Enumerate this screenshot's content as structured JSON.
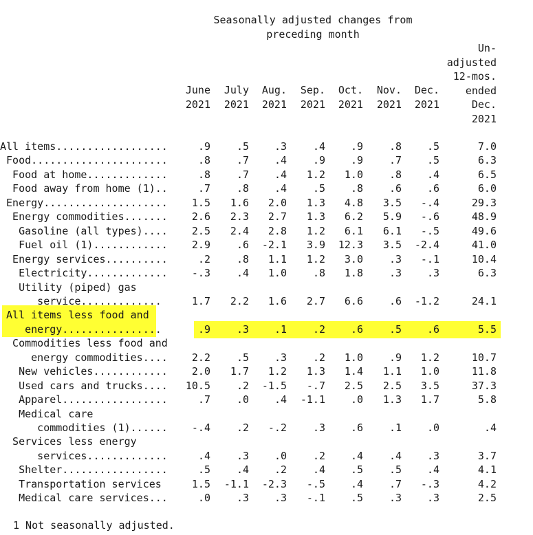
{
  "caption": {
    "line1": "Seasonally adjusted changes from",
    "line2": "preceding month"
  },
  "columns": [
    {
      "line1": "June",
      "line2": "2021"
    },
    {
      "line1": "July",
      "line2": "2021"
    },
    {
      "line1": "Aug.",
      "line2": "2021"
    },
    {
      "line1": "Sep.",
      "line2": "2021"
    },
    {
      "line1": "Oct.",
      "line2": "2021"
    },
    {
      "line1": "Nov.",
      "line2": "2021"
    },
    {
      "line1": "Dec.",
      "line2": "2021"
    }
  ],
  "last_column": {
    "lines": [
      "Un-",
      "adjusted",
      "12-mos.",
      "ended",
      "Dec.",
      "2021"
    ]
  },
  "rows": [
    {
      "label": "All items..................",
      "values": [
        ".9",
        ".5",
        ".3",
        ".4",
        ".9",
        ".8",
        ".5",
        "7.0"
      ]
    },
    {
      "label": " Food......................",
      "values": [
        ".8",
        ".7",
        ".4",
        ".9",
        ".9",
        ".7",
        ".5",
        "6.3"
      ]
    },
    {
      "label": "  Food at home.............",
      "values": [
        ".8",
        ".7",
        ".4",
        "1.2",
        "1.0",
        ".8",
        ".4",
        "6.5"
      ]
    },
    {
      "label": "  Food away from home (1)..",
      "values": [
        ".7",
        ".8",
        ".4",
        ".5",
        ".8",
        ".6",
        ".6",
        "6.0"
      ]
    },
    {
      "label": " Energy....................",
      "values": [
        "1.5",
        "1.6",
        "2.0",
        "1.3",
        "4.8",
        "3.5",
        "-.4",
        "29.3"
      ]
    },
    {
      "label": "  Energy commodities.......",
      "values": [
        "2.6",
        "2.3",
        "2.7",
        "1.3",
        "6.2",
        "5.9",
        "-.6",
        "48.9"
      ]
    },
    {
      "label": "   Gasoline (all types)....",
      "values": [
        "2.5",
        "2.4",
        "2.8",
        "1.2",
        "6.1",
        "6.1",
        "-.5",
        "49.6"
      ]
    },
    {
      "label": "   Fuel oil (1)............",
      "values": [
        "2.9",
        ".6",
        "-2.1",
        "3.9",
        "12.3",
        "3.5",
        "-2.4",
        "41.0"
      ]
    },
    {
      "label": "  Energy services..........",
      "values": [
        ".2",
        ".8",
        "1.1",
        "1.2",
        "3.0",
        ".3",
        "-.1",
        "10.4"
      ]
    },
    {
      "label": "   Electricity.............",
      "values": [
        "-.3",
        ".4",
        "1.0",
        ".8",
        "1.8",
        ".3",
        ".3",
        "6.3"
      ]
    },
    {
      "label": "   Utility (piped) gas",
      "values": []
    },
    {
      "label": "      service.............",
      "values": [
        "1.7",
        "2.2",
        "1.6",
        "2.7",
        "6.6",
        ".6",
        "-1.2",
        "24.1"
      ]
    },
    {
      "label": " All items less food and",
      "values": []
    },
    {
      "label": "    energy................",
      "values": [
        ".9",
        ".3",
        ".1",
        ".2",
        ".6",
        ".5",
        ".6",
        "5.5"
      ]
    },
    {
      "label": "  Commodities less food and",
      "values": []
    },
    {
      "label": "     energy commodities....",
      "values": [
        "2.2",
        ".5",
        ".3",
        ".2",
        "1.0",
        ".9",
        "1.2",
        "10.7"
      ]
    },
    {
      "label": "   New vehicles............",
      "values": [
        "2.0",
        "1.7",
        "1.2",
        "1.3",
        "1.4",
        "1.1",
        "1.0",
        "11.8"
      ]
    },
    {
      "label": "   Used cars and trucks....",
      "values": [
        "10.5",
        ".2",
        "-1.5",
        "-.7",
        "2.5",
        "2.5",
        "3.5",
        "37.3"
      ]
    },
    {
      "label": "   Apparel.................",
      "values": [
        ".7",
        ".0",
        ".4",
        "-1.1",
        ".0",
        "1.3",
        "1.7",
        "5.8"
      ]
    },
    {
      "label": "   Medical care",
      "values": []
    },
    {
      "label": "      commodities (1)......",
      "values": [
        "-.4",
        ".2",
        "-.2",
        ".3",
        ".6",
        ".1",
        ".0",
        ".4"
      ]
    },
    {
      "label": "  Services less energy",
      "values": []
    },
    {
      "label": "      services.............",
      "values": [
        ".4",
        ".3",
        ".0",
        ".2",
        ".4",
        ".4",
        ".3",
        "3.7"
      ]
    },
    {
      "label": "   Shelter.................",
      "values": [
        ".5",
        ".4",
        ".2",
        ".4",
        ".5",
        ".5",
        ".4",
        "4.1"
      ]
    },
    {
      "label": "   Transportation services ",
      "values": [
        "1.5",
        "-1.1",
        "-2.3",
        "-.5",
        ".4",
        ".7",
        "-.3",
        "4.2"
      ]
    },
    {
      "label": "   Medical care services...",
      "values": [
        ".0",
        ".3",
        ".3",
        "-.1",
        ".5",
        ".3",
        ".3",
        "2.5"
      ]
    }
  ],
  "highlight": {
    "color": "#ffff33",
    "rows": [
      12,
      13
    ]
  },
  "footnote": "1 Not seasonally adjusted."
}
